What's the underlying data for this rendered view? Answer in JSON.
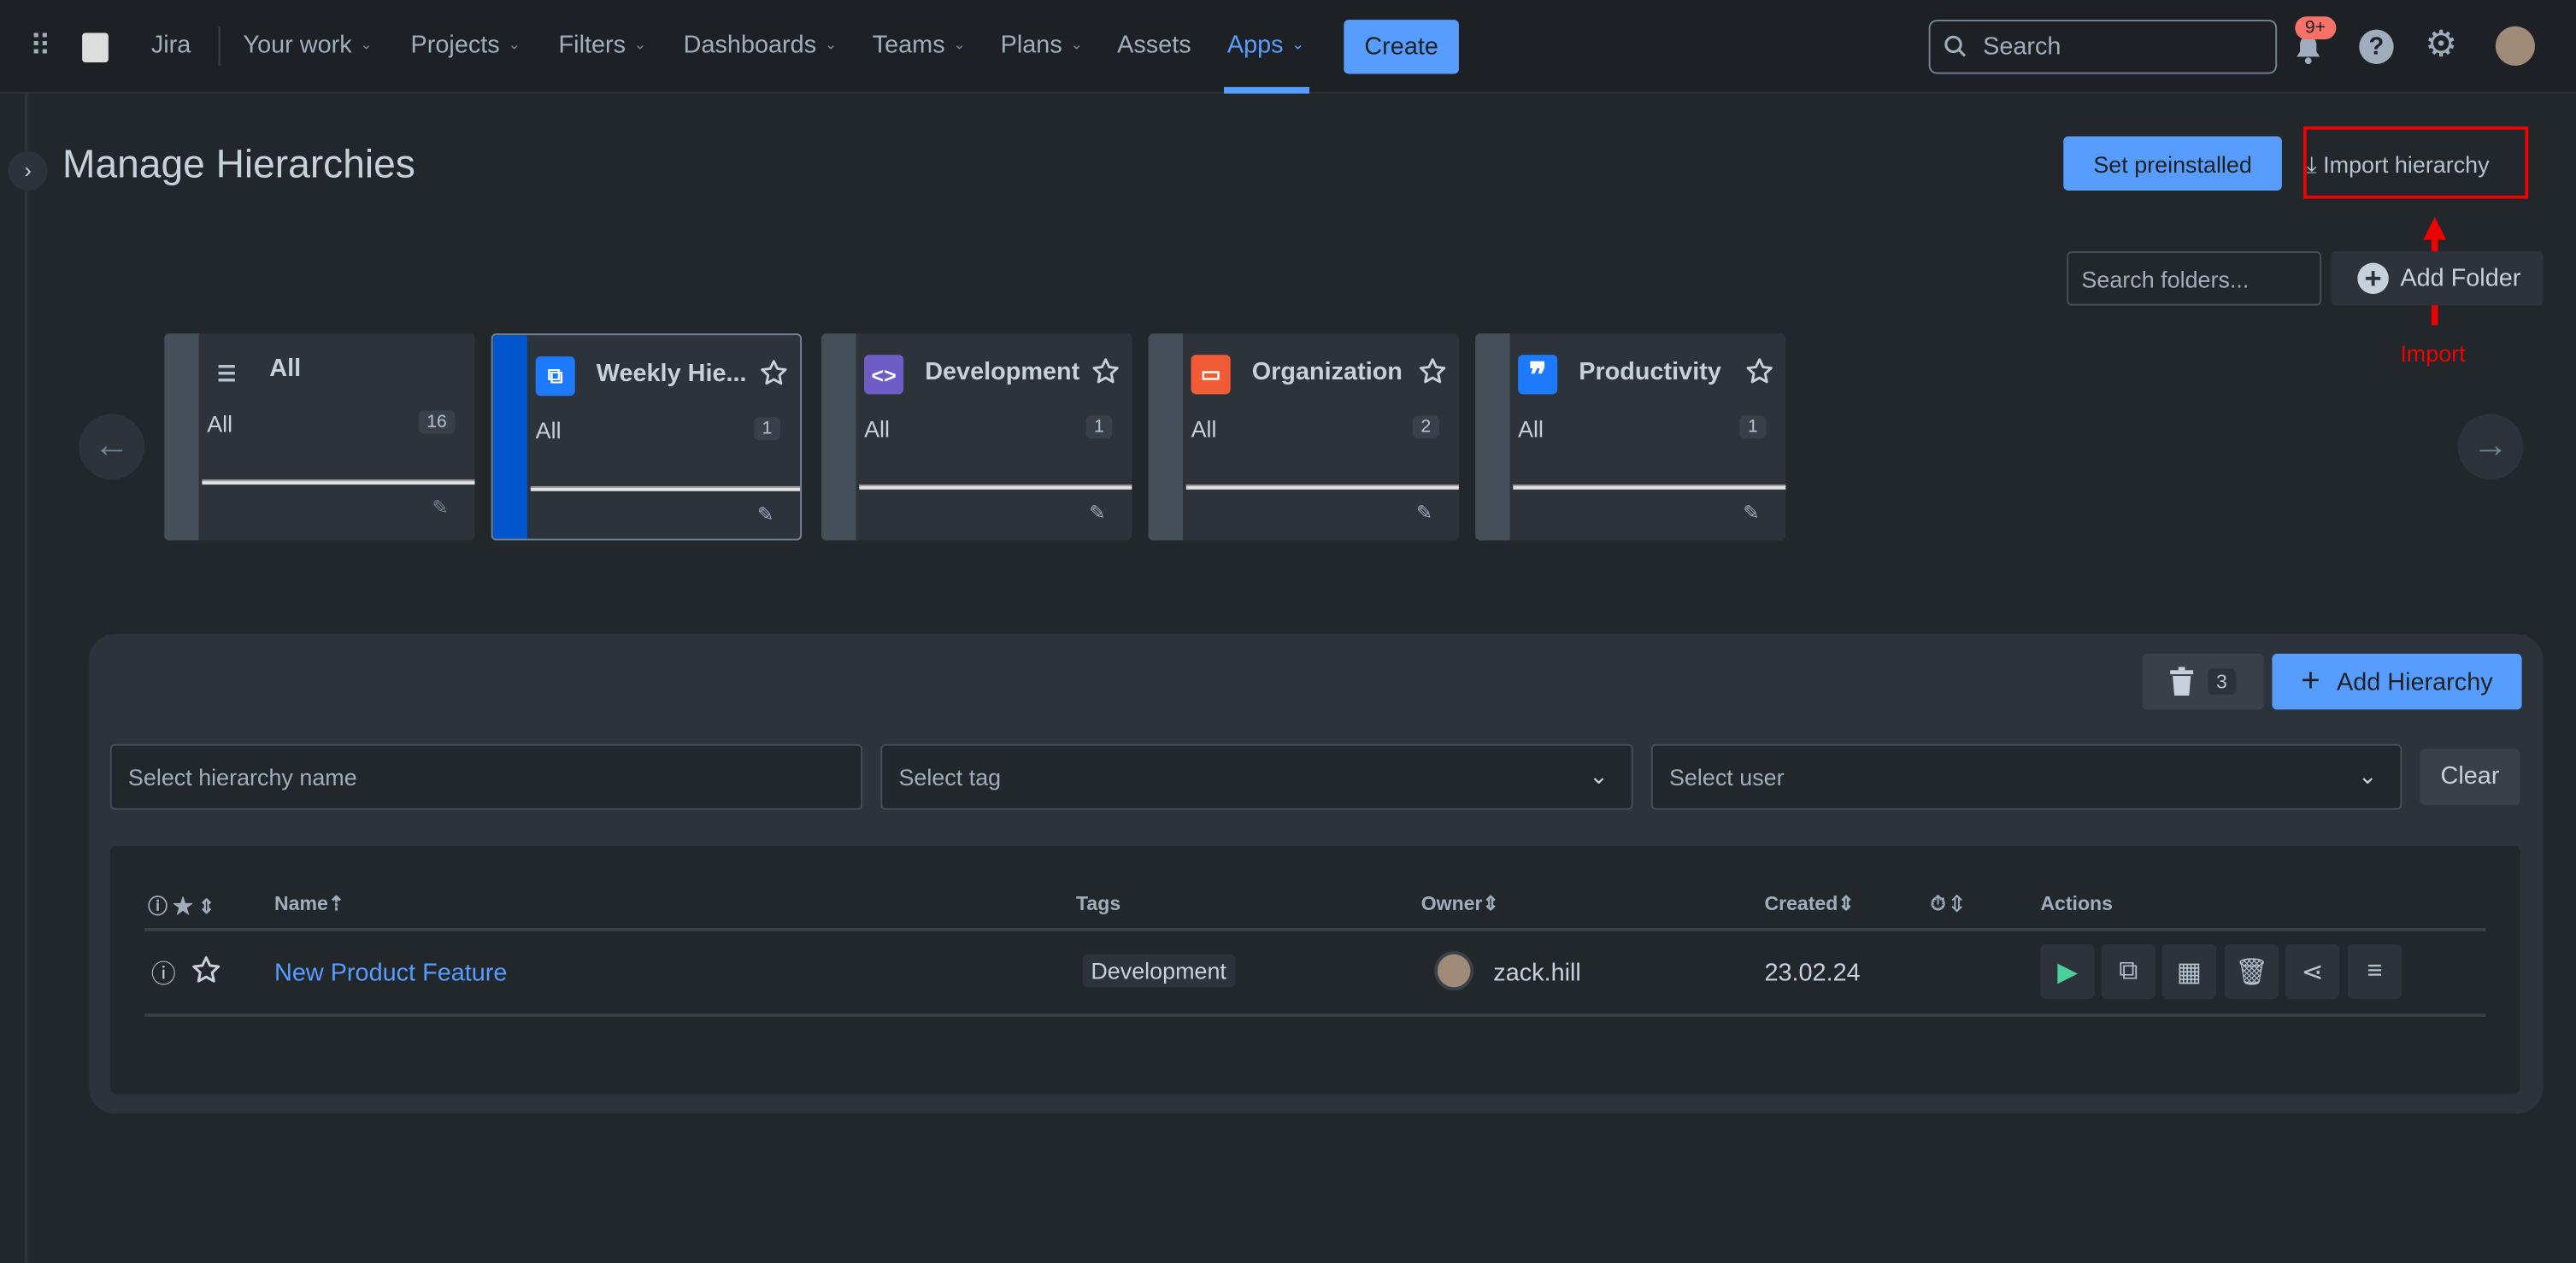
{
  "nav": {
    "product": "Jira",
    "items": [
      {
        "label": "Your work",
        "chevron": true
      },
      {
        "label": "Projects",
        "chevron": true
      },
      {
        "label": "Filters",
        "chevron": true
      },
      {
        "label": "Dashboards",
        "chevron": true
      },
      {
        "label": "Teams",
        "chevron": true
      },
      {
        "label": "Plans",
        "chevron": true
      },
      {
        "label": "Assets",
        "chevron": false
      },
      {
        "label": "Apps",
        "chevron": true,
        "active": true
      }
    ],
    "create": "Create",
    "search_placeholder": "Search",
    "notifications_badge": "9+"
  },
  "page": {
    "title": "Manage Hierarchies",
    "set_preinstalled": "Set preinstalled",
    "import_hierarchy": "Import hierarchy",
    "annotation": "Import",
    "search_folders_placeholder": "Search folders...",
    "add_folder": "Add Folder"
  },
  "folders": [
    {
      "name": "All",
      "sub": "All",
      "count": "16",
      "icon": "stack-icon",
      "color": "#2c333a"
    },
    {
      "name": "Weekly Hie...",
      "sub": "All",
      "count": "1",
      "icon": "hierarchy-icon",
      "color": "#1d7afc",
      "selected": true
    },
    {
      "name": "Development",
      "sub": "All",
      "count": "1",
      "icon": "code-icon",
      "color": "#6e5dc6"
    },
    {
      "name": "Organization",
      "sub": "All",
      "count": "2",
      "icon": "calendar-icon",
      "color": "#f15b35"
    },
    {
      "name": "Productivity",
      "sub": "All",
      "count": "1",
      "icon": "quote-icon",
      "color": "#1d7afc"
    }
  ],
  "panel": {
    "trash_count": "3",
    "add_hierarchy": "Add Hierarchy",
    "name_placeholder": "Select hierarchy name",
    "tag_placeholder": "Select tag",
    "user_placeholder": "Select user",
    "clear": "Clear"
  },
  "table": {
    "headers": {
      "name": "Name",
      "tags": "Tags",
      "owner": "Owner",
      "created": "Created",
      "actions": "Actions"
    },
    "rows": [
      {
        "name": "New Product Feature",
        "tag": "Development",
        "owner": "zack.hill",
        "created": "23.02.24"
      }
    ]
  }
}
